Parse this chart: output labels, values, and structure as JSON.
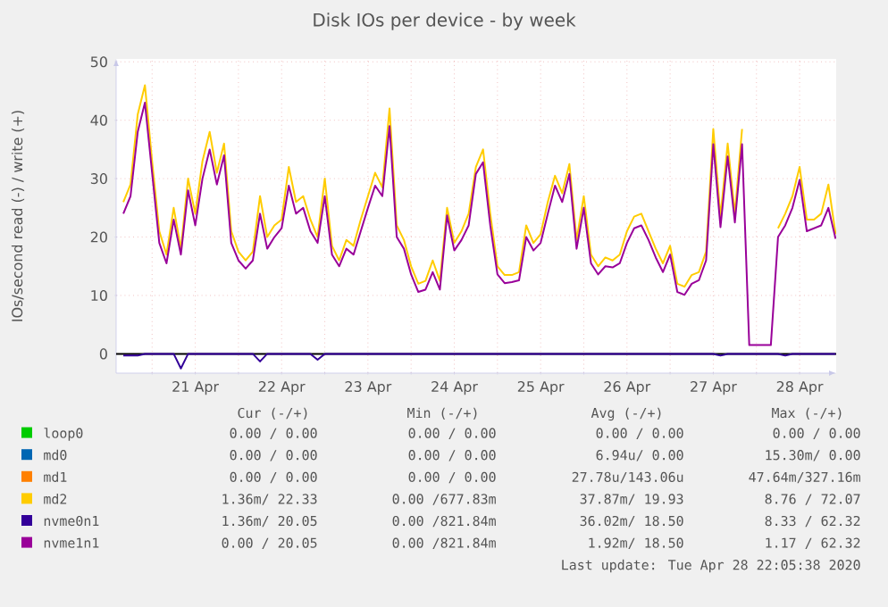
{
  "chart_data": {
    "type": "line",
    "title": "Disk IOs per device - by week",
    "ylabel": "IOs/second read (-) / write (+)",
    "x": [
      "2020-04-20T16:00",
      "2020-04-20T18:00",
      "2020-04-20T20:00",
      "2020-04-20T22:00",
      "2020-04-21T00:00",
      "2020-04-21T02:00",
      "2020-04-21T04:00",
      "2020-04-21T06:00",
      "2020-04-21T08:00",
      "2020-04-21T10:00",
      "2020-04-21T12:00",
      "2020-04-21T14:00",
      "2020-04-21T16:00",
      "2020-04-21T18:00",
      "2020-04-21T20:00",
      "2020-04-21T22:00",
      "2020-04-22T00:00",
      "2020-04-22T02:00",
      "2020-04-22T04:00",
      "2020-04-22T06:00",
      "2020-04-22T08:00",
      "2020-04-22T10:00",
      "2020-04-22T12:00",
      "2020-04-22T14:00",
      "2020-04-22T16:00",
      "2020-04-22T18:00",
      "2020-04-22T20:00",
      "2020-04-22T22:00",
      "2020-04-23T00:00",
      "2020-04-23T02:00",
      "2020-04-23T04:00",
      "2020-04-23T06:00",
      "2020-04-23T08:00",
      "2020-04-23T10:00",
      "2020-04-23T12:00",
      "2020-04-23T14:00",
      "2020-04-23T16:00",
      "2020-04-23T18:00",
      "2020-04-23T20:00",
      "2020-04-23T22:00",
      "2020-04-24T00:00",
      "2020-04-24T02:00",
      "2020-04-24T04:00",
      "2020-04-24T06:00",
      "2020-04-24T08:00",
      "2020-04-24T10:00",
      "2020-04-24T12:00",
      "2020-04-24T14:00",
      "2020-04-24T16:00",
      "2020-04-24T18:00",
      "2020-04-24T20:00",
      "2020-04-24T22:00",
      "2020-04-25T00:00",
      "2020-04-25T02:00",
      "2020-04-25T04:00",
      "2020-04-25T06:00",
      "2020-04-25T08:00",
      "2020-04-25T10:00",
      "2020-04-25T12:00",
      "2020-04-25T14:00",
      "2020-04-25T16:00",
      "2020-04-25T18:00",
      "2020-04-25T20:00",
      "2020-04-25T22:00",
      "2020-04-26T00:00",
      "2020-04-26T02:00",
      "2020-04-26T04:00",
      "2020-04-26T06:00",
      "2020-04-26T08:00",
      "2020-04-26T10:00",
      "2020-04-26T12:00",
      "2020-04-26T14:00",
      "2020-04-26T16:00",
      "2020-04-26T18:00",
      "2020-04-26T20:00",
      "2020-04-26T22:00",
      "2020-04-27T00:00",
      "2020-04-27T02:00",
      "2020-04-27T04:00",
      "2020-04-27T06:00",
      "2020-04-27T08:00",
      "2020-04-27T10:00",
      "2020-04-27T12:00",
      "2020-04-27T14:00",
      "2020-04-27T16:00",
      "2020-04-27T18:00",
      "2020-04-27T20:00",
      "2020-04-27T22:00",
      "2020-04-28T00:00",
      "2020-04-28T02:00",
      "2020-04-28T04:00",
      "2020-04-28T06:00",
      "2020-04-28T08:00",
      "2020-04-28T10:00",
      "2020-04-28T12:00",
      "2020-04-28T14:00",
      "2020-04-28T16:00",
      "2020-04-28T18:00",
      "2020-04-28T20:00",
      "2020-04-28T22:00"
    ],
    "series": [
      {
        "name": "loop0",
        "color": "#00cc00",
        "values": [
          null,
          null,
          null,
          null,
          null,
          null,
          null,
          null,
          null,
          null,
          null,
          null,
          null,
          null,
          null,
          null,
          null,
          null,
          null,
          null,
          null,
          null,
          null,
          null,
          null,
          null,
          null,
          null,
          null,
          null,
          null,
          null,
          null,
          null,
          null,
          null,
          null,
          null,
          null,
          null,
          null,
          null,
          null,
          null,
          null,
          null,
          null,
          null,
          null,
          null,
          null,
          null,
          null,
          null,
          null,
          null,
          null,
          null,
          null,
          null,
          null,
          null,
          null,
          null,
          null,
          null,
          null,
          null,
          null,
          null,
          null,
          null,
          null,
          null,
          null,
          null,
          null,
          null,
          null,
          null,
          null,
          null,
          null,
          null,
          null,
          null,
          null,
          null,
          null,
          null,
          null,
          null,
          null,
          null,
          null,
          null,
          null,
          null,
          null,
          null
        ]
      },
      {
        "name": "md0",
        "color": "#0066b3",
        "values": [
          null,
          null,
          null,
          null,
          null,
          null,
          null,
          null,
          null,
          null,
          null,
          null,
          null,
          null,
          null,
          null,
          null,
          null,
          null,
          null,
          null,
          null,
          null,
          null,
          null,
          null,
          null,
          null,
          null,
          null,
          null,
          null,
          null,
          null,
          null,
          null,
          null,
          null,
          null,
          null,
          null,
          null,
          null,
          null,
          null,
          null,
          null,
          null,
          null,
          null,
          null,
          null,
          null,
          null,
          null,
          null,
          null,
          null,
          null,
          null,
          null,
          null,
          null,
          null,
          null,
          null,
          null,
          null,
          null,
          null,
          null,
          null,
          null,
          null,
          null,
          null,
          null,
          null,
          null,
          null,
          null,
          null,
          null,
          null,
          null,
          null,
          null,
          null,
          null,
          null,
          null,
          null,
          null,
          null,
          null,
          null,
          null,
          null,
          null,
          null
        ]
      },
      {
        "name": "md1",
        "color": "#ff8000",
        "values": [
          null,
          null,
          null,
          null,
          null,
          null,
          null,
          null,
          null,
          null,
          null,
          null,
          null,
          null,
          null,
          null,
          null,
          null,
          null,
          null,
          null,
          null,
          null,
          null,
          null,
          null,
          null,
          null,
          null,
          null,
          null,
          null,
          null,
          null,
          null,
          null,
          null,
          null,
          null,
          null,
          null,
          null,
          null,
          null,
          null,
          null,
          null,
          null,
          null,
          null,
          null,
          null,
          null,
          null,
          null,
          null,
          null,
          null,
          null,
          null,
          null,
          null,
          null,
          null,
          null,
          null,
          null,
          null,
          null,
          null,
          null,
          null,
          null,
          null,
          null,
          null,
          null,
          null,
          null,
          null,
          null,
          null,
          null,
          null,
          null,
          null,
          null,
          null,
          null,
          null,
          null,
          null,
          null,
          null,
          null,
          null,
          null,
          null,
          null,
          null
        ]
      },
      {
        "name": "md2",
        "color": "#ffcc00",
        "values": [
          26,
          29,
          41,
          46,
          33,
          21,
          17,
          25,
          18,
          30,
          24,
          33,
          38,
          31,
          36,
          21,
          17.5,
          16,
          17.5,
          27,
          20,
          22,
          23,
          32,
          26,
          27,
          23,
          20,
          30,
          18.5,
          16,
          19.5,
          18.5,
          23,
          27,
          31,
          28.5,
          42,
          22,
          19.5,
          15,
          12,
          12.5,
          16,
          12.5,
          25,
          19,
          21,
          24,
          32,
          35,
          24,
          15,
          13.5,
          13.5,
          14,
          22,
          19,
          20.5,
          26,
          30.5,
          27.5,
          32.5,
          19.5,
          27,
          17,
          15,
          16.5,
          16,
          17,
          21,
          23.5,
          24,
          21,
          18,
          15.5,
          18.5,
          12,
          11.5,
          13.5,
          14,
          17.5,
          38.5,
          23.5,
          36,
          24,
          38.5,
          null,
          null,
          null,
          null,
          21.5,
          24,
          27,
          32,
          23,
          23,
          24,
          29,
          20.5
        ]
      },
      {
        "name": "nvme0n1",
        "color": "#330099",
        "values": [
          -0.3,
          -0.3,
          -0.3,
          0,
          0,
          0,
          0,
          0,
          -2.5,
          0,
          0,
          0,
          0,
          0,
          0,
          0,
          0,
          0,
          0,
          -1.3,
          0,
          0,
          0,
          0,
          0,
          0,
          0,
          -1,
          0,
          0,
          0,
          0,
          0,
          0,
          0,
          0,
          0,
          0,
          0,
          0,
          0,
          0,
          0,
          0,
          0,
          0,
          0,
          0,
          0,
          0,
          0,
          0,
          0,
          0,
          0,
          0,
          0,
          0,
          0,
          0,
          0,
          0,
          0,
          0,
          0,
          0,
          0,
          0,
          0,
          0,
          0,
          0,
          0,
          0,
          0,
          0,
          0,
          0,
          0,
          0,
          0,
          0,
          0,
          -0.3,
          0,
          0,
          0,
          0,
          0,
          0,
          0,
          0,
          -0.3,
          0,
          0,
          0,
          0,
          0,
          0,
          0
        ]
      },
      {
        "name": "nvme1n1",
        "color": "#990099",
        "values": [
          24,
          27,
          38,
          43,
          31,
          19,
          15.5,
          23,
          17,
          28,
          22,
          30,
          35,
          29,
          34,
          19,
          16,
          14.6,
          16,
          24,
          18,
          20,
          21.5,
          28.8,
          24,
          25,
          21,
          19,
          27,
          17,
          15,
          18,
          17,
          21,
          25,
          28.8,
          27,
          39,
          20,
          18,
          13.6,
          10.6,
          11,
          14,
          11,
          23.7,
          17.7,
          19.5,
          22,
          30.8,
          32.8,
          22,
          13.6,
          12.1,
          12.3,
          12.6,
          20,
          17.7,
          19,
          24,
          28.8,
          26,
          30.8,
          18,
          25,
          15.5,
          13.6,
          15,
          14.8,
          15.5,
          19,
          21.5,
          22,
          19.5,
          16.5,
          14,
          17,
          10.6,
          10.1,
          12,
          12.6,
          16,
          35.9,
          21.7,
          33.8,
          22.5,
          35.9,
          1.5,
          1.5,
          1.5,
          1.5,
          20,
          22,
          25,
          29.8,
          21,
          21.5,
          22,
          25,
          19.7
        ]
      }
    ],
    "xlim": [
      "2020-04-20T14:00",
      "2020-04-28T22:10"
    ],
    "xticks": [
      {
        "value": "2020-04-21T00:00",
        "label": null
      },
      {
        "value": "2020-04-21T12:00",
        "label": "21 Apr"
      },
      {
        "value": "2020-04-22T00:00",
        "label": null
      },
      {
        "value": "2020-04-22T12:00",
        "label": "22 Apr"
      },
      {
        "value": "2020-04-23T00:00",
        "label": null
      },
      {
        "value": "2020-04-23T12:00",
        "label": "23 Apr"
      },
      {
        "value": "2020-04-24T00:00",
        "label": null
      },
      {
        "value": "2020-04-24T12:00",
        "label": "24 Apr"
      },
      {
        "value": "2020-04-25T00:00",
        "label": null
      },
      {
        "value": "2020-04-25T12:00",
        "label": "25 Apr"
      },
      {
        "value": "2020-04-26T00:00",
        "label": null
      },
      {
        "value": "2020-04-26T12:00",
        "label": "26 Apr"
      },
      {
        "value": "2020-04-27T00:00",
        "label": null
      },
      {
        "value": "2020-04-27T12:00",
        "label": "27 Apr"
      },
      {
        "value": "2020-04-28T00:00",
        "label": null
      },
      {
        "value": "2020-04-28T12:00",
        "label": "28 Apr"
      }
    ],
    "ylim": [
      -3.3,
      50.5
    ],
    "yticks": [
      0,
      10,
      20,
      30,
      40,
      50
    ],
    "ref_lines": [
      {
        "axis": "y",
        "value": 0,
        "color": "#000000"
      }
    ],
    "grid": true,
    "legend": "bottom",
    "marker": "none",
    "line_style": "solid",
    "annotations": [
      "Cur (-/+)",
      "Min (-/+)",
      "Avg (-/+)",
      "Max (-/+)",
      "0.00 / 0.00",
      "0.00 / 0.00",
      "0.00 / 0.00",
      "0.00 / 0.00",
      "0.00 / 0.00",
      "0.00 / 0.00",
      "6.94u/ 0.00",
      "15.30m/ 0.00",
      "0.00 / 0.00",
      "0.00 / 0.00",
      "27.78u/143.06u",
      "47.64m/327.16m",
      "1.36m/ 22.33",
      "0.00 /677.83m",
      "37.87m/ 19.93",
      "8.76 / 72.07",
      "1.36m/ 20.05",
      "0.00 /821.84m",
      "36.02m/ 18.50",
      "8.33 / 62.32",
      "0.00 / 20.05",
      "0.00 /821.84m",
      "1.92m/ 18.50",
      "1.17 / 62.32",
      "Last update: Tue Apr 28 22:05:38 2020"
    ]
  }
}
